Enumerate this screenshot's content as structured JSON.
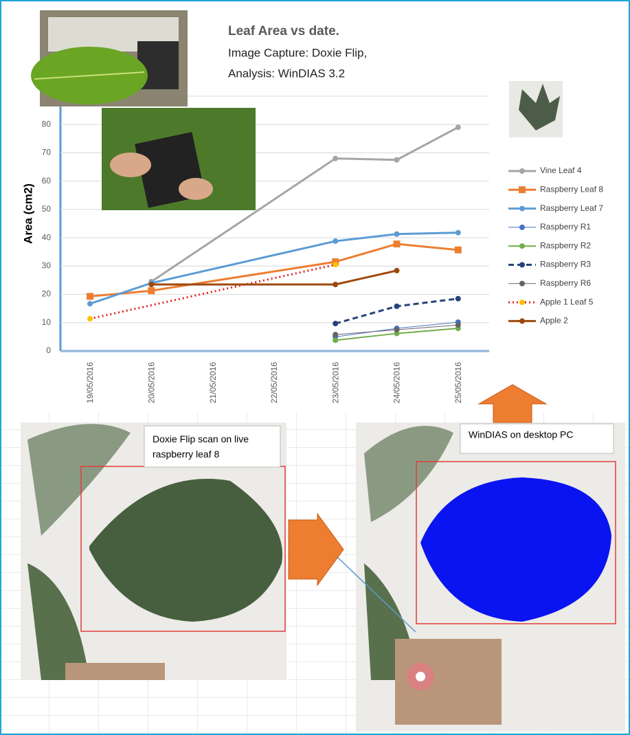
{
  "chart_data": {
    "type": "line",
    "title": "Leaf Area  vs date.",
    "subtitle": [
      "Image Capture: Doxie Flip,",
      "Analysis: WinDIAS 3.2"
    ],
    "y_label": "Area (cm2)",
    "categories": [
      "19/05/2016",
      "20/05/2016",
      "21/05/2016",
      "22/05/2016",
      "23/05/2016",
      "24/05/2016",
      "25/05/2016"
    ],
    "ylim": [
      0,
      90
    ],
    "yticks": [
      0,
      10,
      20,
      30,
      40,
      50,
      60,
      70,
      80
    ],
    "grid": true,
    "gaps": "connect",
    "series": [
      {
        "name": "Vine Leaf 4",
        "color": "#a5a5a5",
        "line_width": 3,
        "marker": "circle",
        "values": [
          null,
          24.5,
          null,
          null,
          68,
          67.5,
          79
        ]
      },
      {
        "name": "Raspberry  Leaf 8",
        "color": "#ed7d31",
        "line_width": 3,
        "marker": "square",
        "values": [
          19.3,
          21.3,
          null,
          null,
          31.5,
          37.8,
          35.7
        ]
      },
      {
        "name": "Raspberry  Leaf 7",
        "color": "#5b9bd5",
        "line_width": 3,
        "marker": "circle",
        "values": [
          16.7,
          24,
          null,
          null,
          38.8,
          41.3,
          41.8
        ]
      },
      {
        "name": "Raspberry  R1",
        "color": "#4472c4",
        "line_width": 1,
        "marker": "circle",
        "values": [
          null,
          null,
          null,
          null,
          5,
          8,
          10.2
        ]
      },
      {
        "name": "Raspberry  R2",
        "color": "#70ad47",
        "line_width": 2,
        "marker": "circle",
        "values": [
          null,
          null,
          null,
          null,
          3.8,
          6.2,
          8
        ]
      },
      {
        "name": "Raspberry  R3",
        "color": "#264478",
        "line_width": 3,
        "line_style": "dashed",
        "marker": "circle",
        "values": [
          null,
          null,
          null,
          null,
          9.7,
          15.8,
          18.5
        ]
      },
      {
        "name": "Raspberry  R6",
        "color": "#636363",
        "line_width": 1,
        "marker": "circle",
        "values": [
          null,
          null,
          null,
          null,
          5.8,
          7.5,
          9.2
        ]
      },
      {
        "name": "Apple 1 Leaf 5",
        "color": "#e02020",
        "marker_color": "#ffc000",
        "line_width": 3,
        "line_style": "dotted",
        "marker": "circle",
        "values": [
          11.4,
          null,
          null,
          null,
          30.5,
          null,
          null
        ]
      },
      {
        "name": "Apple 2",
        "color": "#9e480e",
        "line_width": 3,
        "marker": "circle",
        "values": [
          null,
          23.5,
          null,
          null,
          23.5,
          28.4,
          null
        ]
      }
    ],
    "annotations": [
      "Doxie Flip scan on live raspberry  leaf  8",
      "WinDIAS on desktop PC"
    ]
  }
}
